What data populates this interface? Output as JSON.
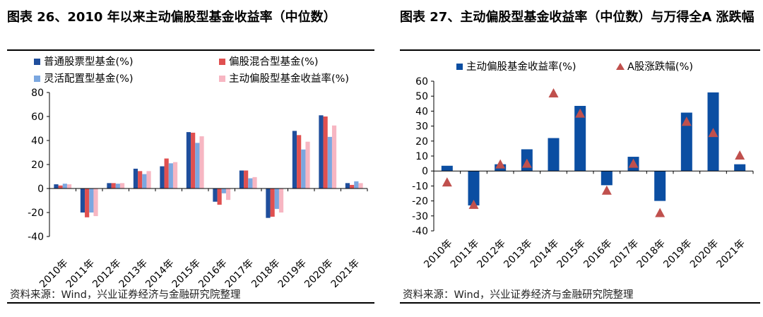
{
  "left": {
    "title": "图表 26、2010 年以来主动偏股型基金收益率（中位数）",
    "source": "资料来源：Wind，兴业证券经济与金融研究院整理"
  },
  "right": {
    "title": "图表 27、主动偏股型基金收益率（中位数）与万得全A 涨跌幅",
    "source": "资料来源：Wind，兴业证券经济与金融研究院整理"
  },
  "chart_data": [
    {
      "type": "bar",
      "categories": [
        "2010年",
        "2011年",
        "2012年",
        "2013年",
        "2014年",
        "2015年",
        "2016年",
        "2017年",
        "2018年",
        "2019年",
        "2020年",
        "2021年"
      ],
      "ylim": [
        -40,
        80
      ],
      "yticks": [
        -40,
        -20,
        0,
        20,
        40,
        60,
        80
      ],
      "grid": false,
      "legend_position": "top",
      "series": [
        {
          "name": "普通股票型基金(%)",
          "color": "#1f4e9c",
          "values": [
            3.5,
            -20,
            4.5,
            16.5,
            18.5,
            47,
            -11,
            15,
            -24.5,
            48,
            61,
            4.5
          ]
        },
        {
          "name": "偏股混合型基金(%)",
          "color": "#e05050",
          "values": [
            2.5,
            -24,
            4.5,
            14.5,
            25,
            46.5,
            -13.5,
            15,
            -23.5,
            44.5,
            60,
            3
          ]
        },
        {
          "name": "灵活配置型基金(%)",
          "color": "#7ba7e0",
          "values": [
            4,
            -20,
            4,
            12,
            21,
            38,
            -4,
            8.5,
            -17,
            32.5,
            43,
            6
          ]
        },
        {
          "name": "主动偏股型基金收益率(%)",
          "color": "#f7b6c2",
          "values": [
            3.5,
            -23,
            4.5,
            14.5,
            22,
            43.5,
            -9.5,
            9.5,
            -20,
            39,
            52.5,
            4.5
          ]
        }
      ]
    },
    {
      "type": "bar",
      "categories": [
        "2010年",
        "2011年",
        "2012年",
        "2013年",
        "2014年",
        "2015年",
        "2016年",
        "2017年",
        "2018年",
        "2019年",
        "2020年",
        "2021年"
      ],
      "ylim": [
        -40,
        60
      ],
      "yticks": [
        -40,
        -30,
        -20,
        -10,
        0,
        10,
        20,
        30,
        40,
        50,
        60
      ],
      "grid": false,
      "legend_position": "top",
      "series": [
        {
          "name": "主动偏股基金收益率(%)",
          "kind": "bar",
          "color": "#0b4ea2",
          "values": [
            3.5,
            -23,
            4.5,
            14.5,
            22,
            43.5,
            -9.5,
            9.5,
            -20,
            39,
            52.5,
            4.5
          ]
        },
        {
          "name": "A股涨跌幅(%)",
          "kind": "marker",
          "color": "#c0504d",
          "values": [
            -7.5,
            -22.5,
            4.5,
            5,
            52,
            38.5,
            -13,
            5,
            -28,
            33,
            25.5,
            10.5
          ]
        }
      ]
    }
  ]
}
